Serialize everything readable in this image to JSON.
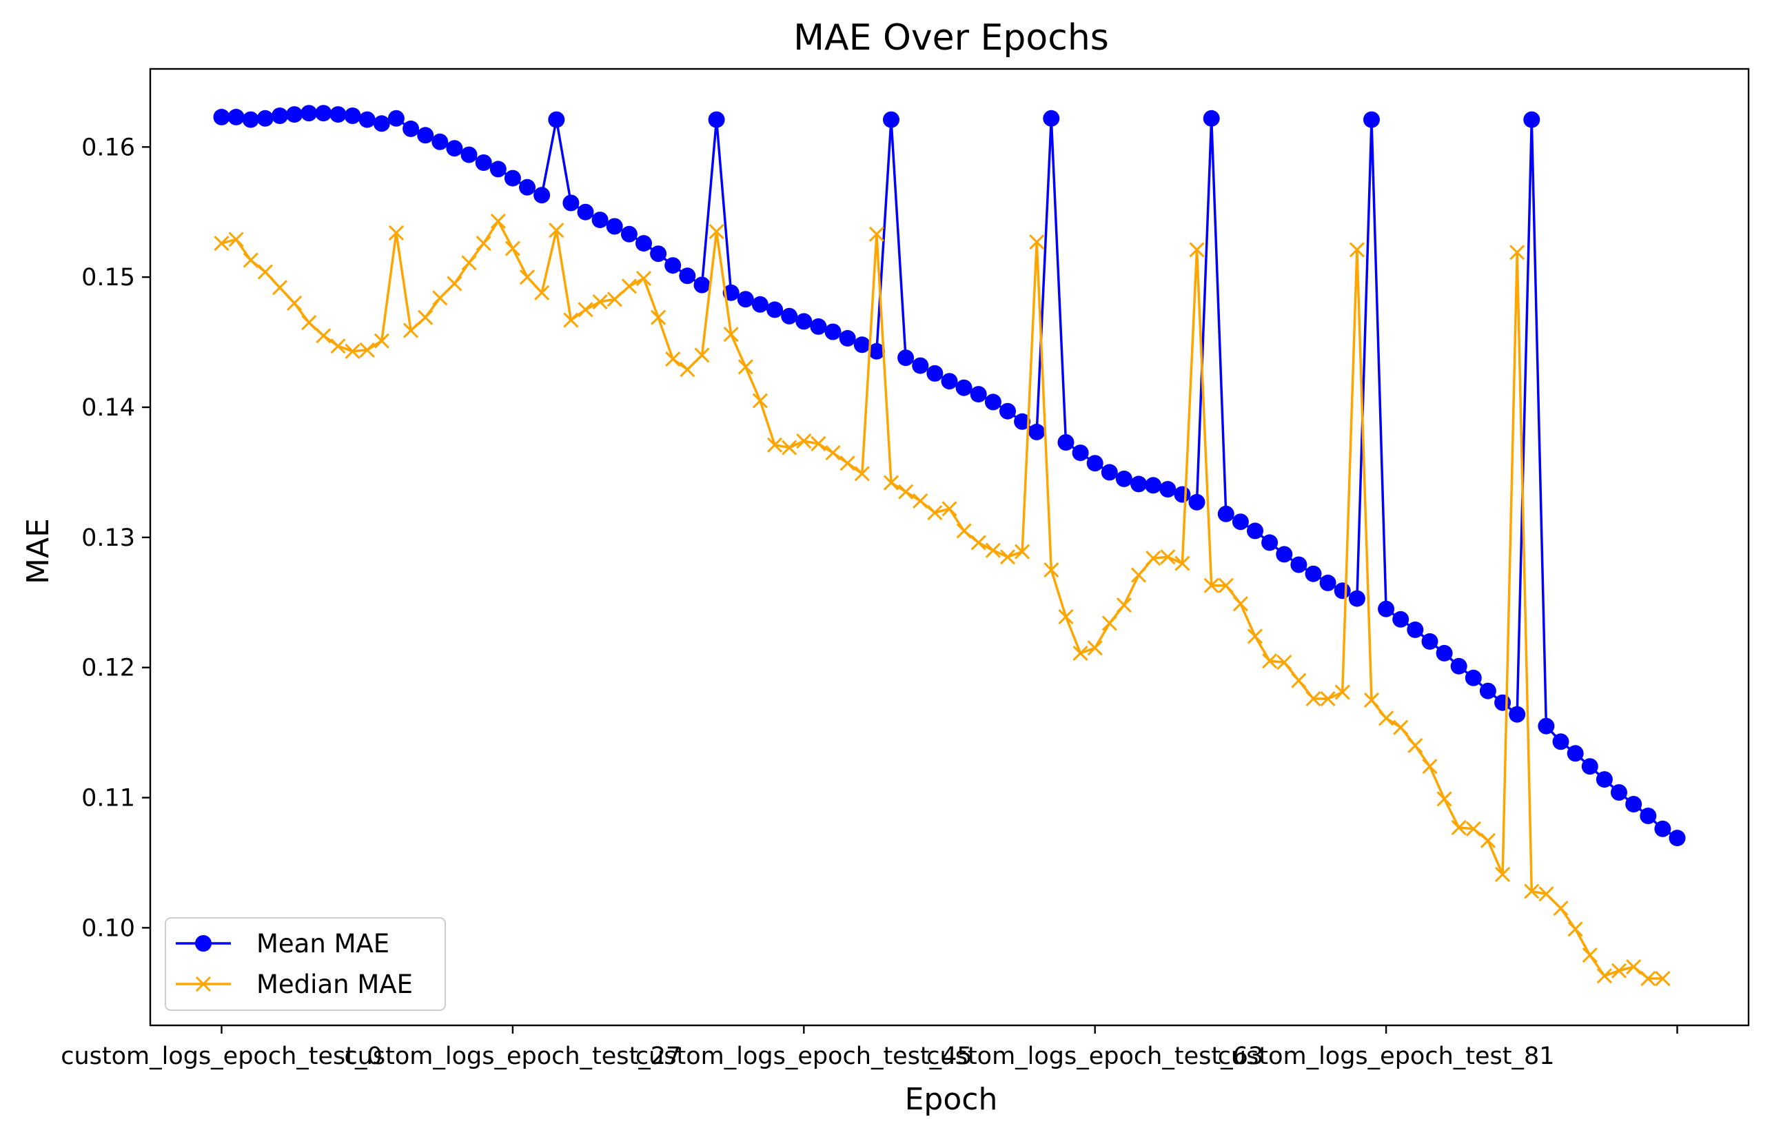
{
  "chart_data": {
    "type": "line",
    "title": "MAE Over Epochs",
    "xlabel": "Epoch",
    "ylabel": "MAE",
    "ylim": [
      0.0925,
      0.166
    ],
    "xlim": [
      -4.9,
      104.9
    ],
    "x_tick_labels": [
      "custom_logs_epoch_test_0",
      "custom_logs_epoch_test_27",
      "custom_logs_epoch_test_45",
      "custom_logs_epoch_test_63",
      "custom_logs_epoch_test_81",
      ""
    ],
    "x_tick_positions": [
      0,
      20,
      40,
      60,
      80,
      100
    ],
    "y_ticks": [
      0.1,
      0.11,
      0.12,
      0.13,
      0.14,
      0.15,
      0.16
    ],
    "y_tick_labels": [
      "0.10",
      "0.11",
      "0.12",
      "0.13",
      "0.14",
      "0.15",
      "0.16"
    ],
    "grid": false,
    "legend_position": "lower-left",
    "series": [
      {
        "name": "Mean MAE",
        "color": "#0000ff",
        "marker": "circle",
        "values": [
          0.1623,
          0.1623,
          0.1621,
          0.1622,
          0.1624,
          0.1625,
          0.1626,
          0.1626,
          0.1625,
          0.1624,
          0.1621,
          0.1618,
          0.1622,
          0.1614,
          0.1609,
          0.1604,
          0.1599,
          0.1594,
          0.1588,
          0.1583,
          0.1576,
          0.1569,
          0.1563,
          0.1621,
          0.1557,
          0.155,
          0.1544,
          0.1539,
          0.1533,
          0.1526,
          0.1518,
          0.1509,
          0.1501,
          0.1494,
          0.1621,
          0.1488,
          0.1483,
          0.1479,
          0.1475,
          0.147,
          0.1466,
          0.1462,
          0.1458,
          0.1453,
          0.1448,
          0.1443,
          0.1621,
          0.1438,
          0.1432,
          0.1426,
          0.142,
          0.1415,
          0.141,
          0.1404,
          0.1397,
          0.1389,
          0.1381,
          0.1622,
          0.1373,
          0.1365,
          0.1357,
          0.135,
          0.1345,
          0.1341,
          0.134,
          0.1337,
          0.1333,
          0.1327,
          0.1622,
          0.1318,
          0.1312,
          0.1305,
          0.1296,
          0.1287,
          0.1279,
          0.1272,
          0.1265,
          0.1259,
          0.1253,
          0.1621,
          0.1245,
          0.1237,
          0.1229,
          0.122,
          0.1211,
          0.1201,
          0.1192,
          0.1182,
          0.1173,
          0.1164,
          0.1621,
          0.1155,
          0.1143,
          0.1134,
          0.1124,
          0.1114,
          0.1104,
          0.1095,
          0.1086,
          0.1076,
          0.1069
        ]
      },
      {
        "name": "Median MAE",
        "color": "#ffa500",
        "marker": "x",
        "values": [
          0.1526,
          0.1529,
          0.1513,
          0.1504,
          0.1492,
          0.148,
          0.1465,
          0.1455,
          0.1447,
          0.1443,
          0.1444,
          0.1451,
          0.1534,
          0.1459,
          0.1469,
          0.1484,
          0.1495,
          0.1511,
          0.1526,
          0.1543,
          0.1522,
          0.15,
          0.1488,
          0.1536,
          0.1467,
          0.1475,
          0.1481,
          0.1483,
          0.1493,
          0.1499,
          0.1469,
          0.1437,
          0.1429,
          0.144,
          0.1535,
          0.1456,
          0.1431,
          0.1405,
          0.1371,
          0.1369,
          0.1374,
          0.1372,
          0.1365,
          0.1357,
          0.1349,
          0.1533,
          0.1342,
          0.1335,
          0.1328,
          0.1319,
          0.1322,
          0.1305,
          0.1296,
          0.129,
          0.1285,
          0.1289,
          0.1527,
          0.1275,
          0.1239,
          0.1211,
          0.1215,
          0.1234,
          0.1248,
          0.1271,
          0.1284,
          0.1285,
          0.128,
          0.1521,
          0.1263,
          0.1263,
          0.1249,
          0.1224,
          0.1205,
          0.1204,
          0.119,
          0.1176,
          0.1176,
          0.1181,
          0.1521,
          0.1175,
          0.1161,
          0.1154,
          0.114,
          0.1124,
          0.1099,
          0.1077,
          0.1076,
          0.1067,
          0.1041,
          0.1519,
          0.1028,
          0.1026,
          0.1015,
          0.0999,
          0.0979,
          0.0963,
          0.0967,
          0.097,
          0.0961,
          0.0961
        ]
      }
    ]
  }
}
